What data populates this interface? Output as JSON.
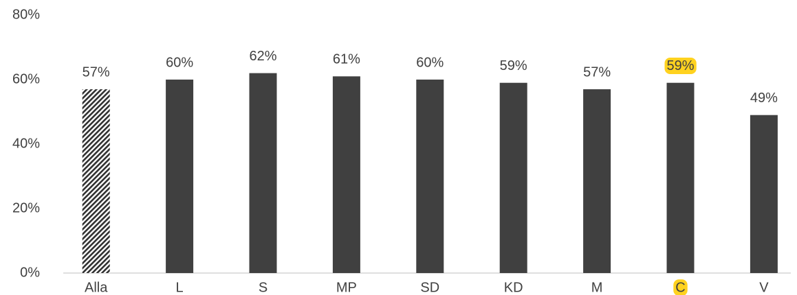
{
  "chart_data": {
    "type": "bar",
    "categories": [
      "Alla",
      "L",
      "S",
      "MP",
      "SD",
      "KD",
      "M",
      "C",
      "V"
    ],
    "values": [
      57,
      60,
      62,
      61,
      60,
      59,
      57,
      59,
      49
    ],
    "value_labels": [
      "57%",
      "60%",
      "62%",
      "61%",
      "60%",
      "59%",
      "57%",
      "59%",
      "49%"
    ],
    "color": "#404040",
    "hatched": 0,
    "highlight": 7,
    "highlight_color": "#ffd21f",
    "ylim": [
      0,
      80
    ],
    "yticks": [
      {
        "value": 0,
        "label": "0%"
      },
      {
        "value": 20,
        "label": "20%"
      },
      {
        "value": 40,
        "label": "40%"
      },
      {
        "value": 60,
        "label": "60%"
      },
      {
        "value": 80,
        "label": "80%"
      }
    ],
    "grid": false
  }
}
